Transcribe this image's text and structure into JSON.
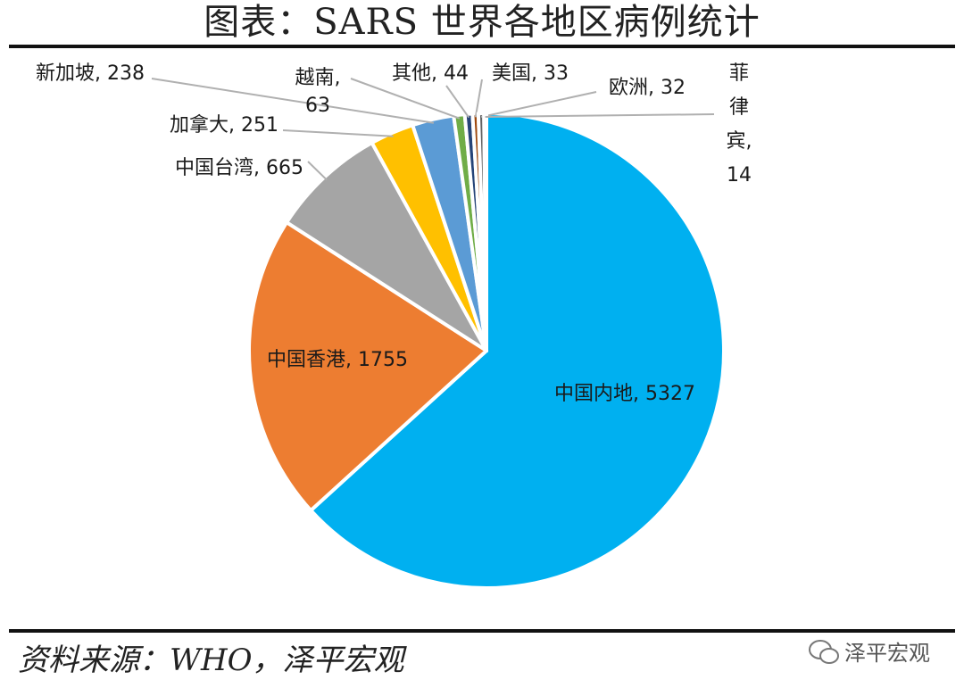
{
  "title": "图表：SARS 世界各地区病例统计",
  "source": "资料来源：WHO，泽平宏观",
  "brand": {
    "name": "泽平宏观",
    "icon": "wechat-icon"
  },
  "chart_data": {
    "type": "pie",
    "title": "图表：SARS 世界各地区病例统计",
    "slices": [
      {
        "label": "中国内地",
        "value": 5327,
        "color": "#00B0F0"
      },
      {
        "label": "中国香港",
        "value": 1755,
        "color": "#ED7D31"
      },
      {
        "label": "中国台湾",
        "value": 665,
        "color": "#A5A5A5"
      },
      {
        "label": "加拿大",
        "value": 251,
        "color": "#FFC000"
      },
      {
        "label": "新加坡",
        "value": 238,
        "color": "#5B9BD5"
      },
      {
        "label": "越南",
        "value": 63,
        "color": "#70AD47"
      },
      {
        "label": "其他",
        "value": 44,
        "color": "#264478"
      },
      {
        "label": "美国",
        "value": 33,
        "color": "#9E480E"
      },
      {
        "label": "欧洲",
        "value": 32,
        "color": "#636363"
      },
      {
        "label": "菲律宾",
        "value": 14,
        "color": "#997300"
      }
    ]
  }
}
